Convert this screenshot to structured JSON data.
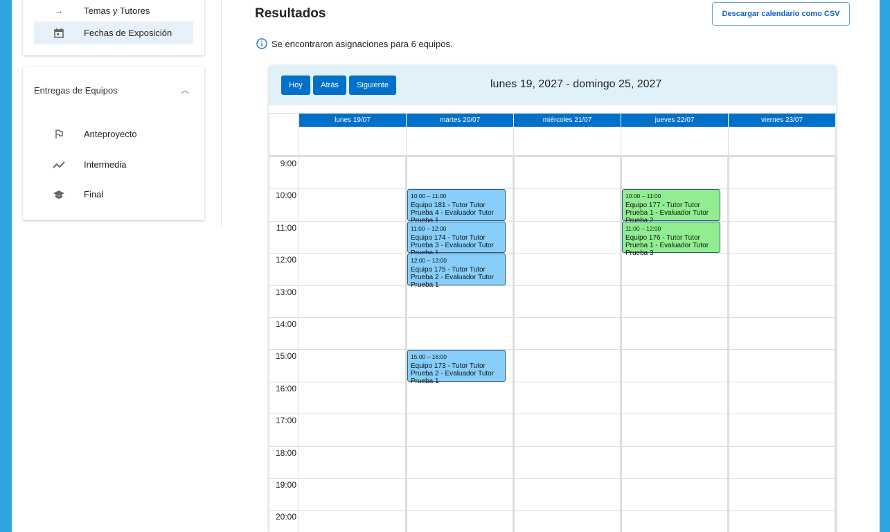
{
  "sidebar": {
    "top_items": [
      {
        "label": "Temas y Tutores",
        "icon": "arrow-icon"
      },
      {
        "label": "Fechas de Exposición",
        "icon": "calendar-icon",
        "active": true
      }
    ],
    "section": {
      "title": "Entregas de Equipos",
      "items": [
        {
          "label": "Anteproyecto",
          "icon": "flag-icon"
        },
        {
          "label": "Intermedia",
          "icon": "trending-icon"
        },
        {
          "label": "Final",
          "icon": "school-icon"
        }
      ]
    }
  },
  "main": {
    "title": "Resultados",
    "csv_button": "Descargar calendario como CSV",
    "info": "Se encontraron asignaciones para 6 equipos."
  },
  "calendar": {
    "buttons": {
      "today": "Hoy",
      "back": "Atrás",
      "next": "Siguiente"
    },
    "range": "lunes 19, 2027 - domingo 25, 2027",
    "days": [
      "lunes 19/07",
      "martes 20/07",
      "miércoles 21/07",
      "jueves 22/07",
      "viernes 23/07"
    ],
    "hours": [
      "9:00",
      "10:00",
      "11:00",
      "12:00",
      "13:00",
      "14:00",
      "15:00",
      "16:00",
      "17:00",
      "18:00",
      "19:00",
      "20:00"
    ],
    "events": [
      {
        "day": 1,
        "start": 10,
        "time": "10:00 – 11:00",
        "title": "Equipo 181 - Tutor Tutor Prueba 4 - Evaluador Tutor Prueba 1",
        "color": "#87cefa"
      },
      {
        "day": 1,
        "start": 11,
        "time": "11:00 – 12:00",
        "title": "Equipo 174 - Tutor Tutor Prueba 3 - Evaluador Tutor Prueba 1",
        "color": "#87cefa"
      },
      {
        "day": 1,
        "start": 12,
        "time": "12:00 – 13:00",
        "title": "Equipo 175 - Tutor Tutor Prueba 2 - Evaluador Tutor Prueba 1",
        "color": "#87cefa"
      },
      {
        "day": 1,
        "start": 15,
        "time": "15:00 – 16:00",
        "title": "Equipo 173 - Tutor Tutor Prueba 2 - Evaluador Tutor Prueba 1",
        "color": "#87cefa"
      },
      {
        "day": 3,
        "start": 10,
        "time": "10:00 – 11:00",
        "title": "Equipo 177 - Tutor Tutor Prueba 1 - Evaluador Tutor Prueba 2",
        "color": "#90ee90"
      },
      {
        "day": 3,
        "start": 11,
        "time": "11:00 – 12:00",
        "title": "Equipo 176 - Tutor Tutor Prueba 1 - Evaluador Tutor Prueba 3",
        "color": "#90ee90"
      }
    ]
  }
}
